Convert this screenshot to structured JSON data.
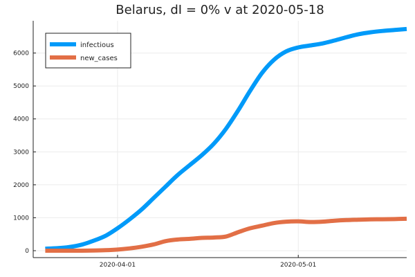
{
  "chart_data": {
    "type": "line",
    "title": "Belarus,  dI = 0% v at 2020-05-18",
    "xlabel": "",
    "ylabel": "",
    "x_type": "date",
    "xlim": [
      "2020-03-18",
      "2020-05-19"
    ],
    "ylim": [
      0,
      7000
    ],
    "x_ticks": [
      {
        "date": "2020-04-01",
        "label": "2020-04-01"
      },
      {
        "date": "2020-05-01",
        "label": "2020-05-01"
      }
    ],
    "y_ticks": [
      0,
      1000,
      2000,
      3000,
      4000,
      5000,
      6000
    ],
    "grid": true,
    "legend_position": "top-left",
    "x": [
      "2020-03-20",
      "2020-03-22",
      "2020-03-24",
      "2020-03-26",
      "2020-03-28",
      "2020-03-30",
      "2020-04-01",
      "2020-04-03",
      "2020-04-05",
      "2020-04-07",
      "2020-04-09",
      "2020-04-11",
      "2020-04-13",
      "2020-04-15",
      "2020-04-17",
      "2020-04-19",
      "2020-04-21",
      "2020-04-23",
      "2020-04-25",
      "2020-04-27",
      "2020-04-29",
      "2020-05-01",
      "2020-05-03",
      "2020-05-05",
      "2020-05-07",
      "2020-05-09",
      "2020-05-11",
      "2020-05-13",
      "2020-05-15",
      "2020-05-17",
      "2020-05-19"
    ],
    "series": [
      {
        "name": "infectious",
        "color": "#009af9",
        "values": [
          60,
          75,
          110,
          180,
          300,
          450,
          680,
          950,
          1250,
          1600,
          1950,
          2300,
          2600,
          2900,
          3250,
          3700,
          4250,
          4850,
          5400,
          5800,
          6050,
          6170,
          6230,
          6290,
          6380,
          6480,
          6570,
          6630,
          6670,
          6700,
          6730
        ]
      },
      {
        "name": "new_cases",
        "color": "#e26f46",
        "values": [
          0,
          0,
          0,
          0,
          5,
          15,
          35,
          70,
          120,
          190,
          290,
          340,
          360,
          390,
          400,
          430,
          560,
          680,
          760,
          840,
          880,
          890,
          870,
          880,
          910,
          930,
          940,
          950,
          955,
          960,
          970
        ]
      }
    ]
  }
}
